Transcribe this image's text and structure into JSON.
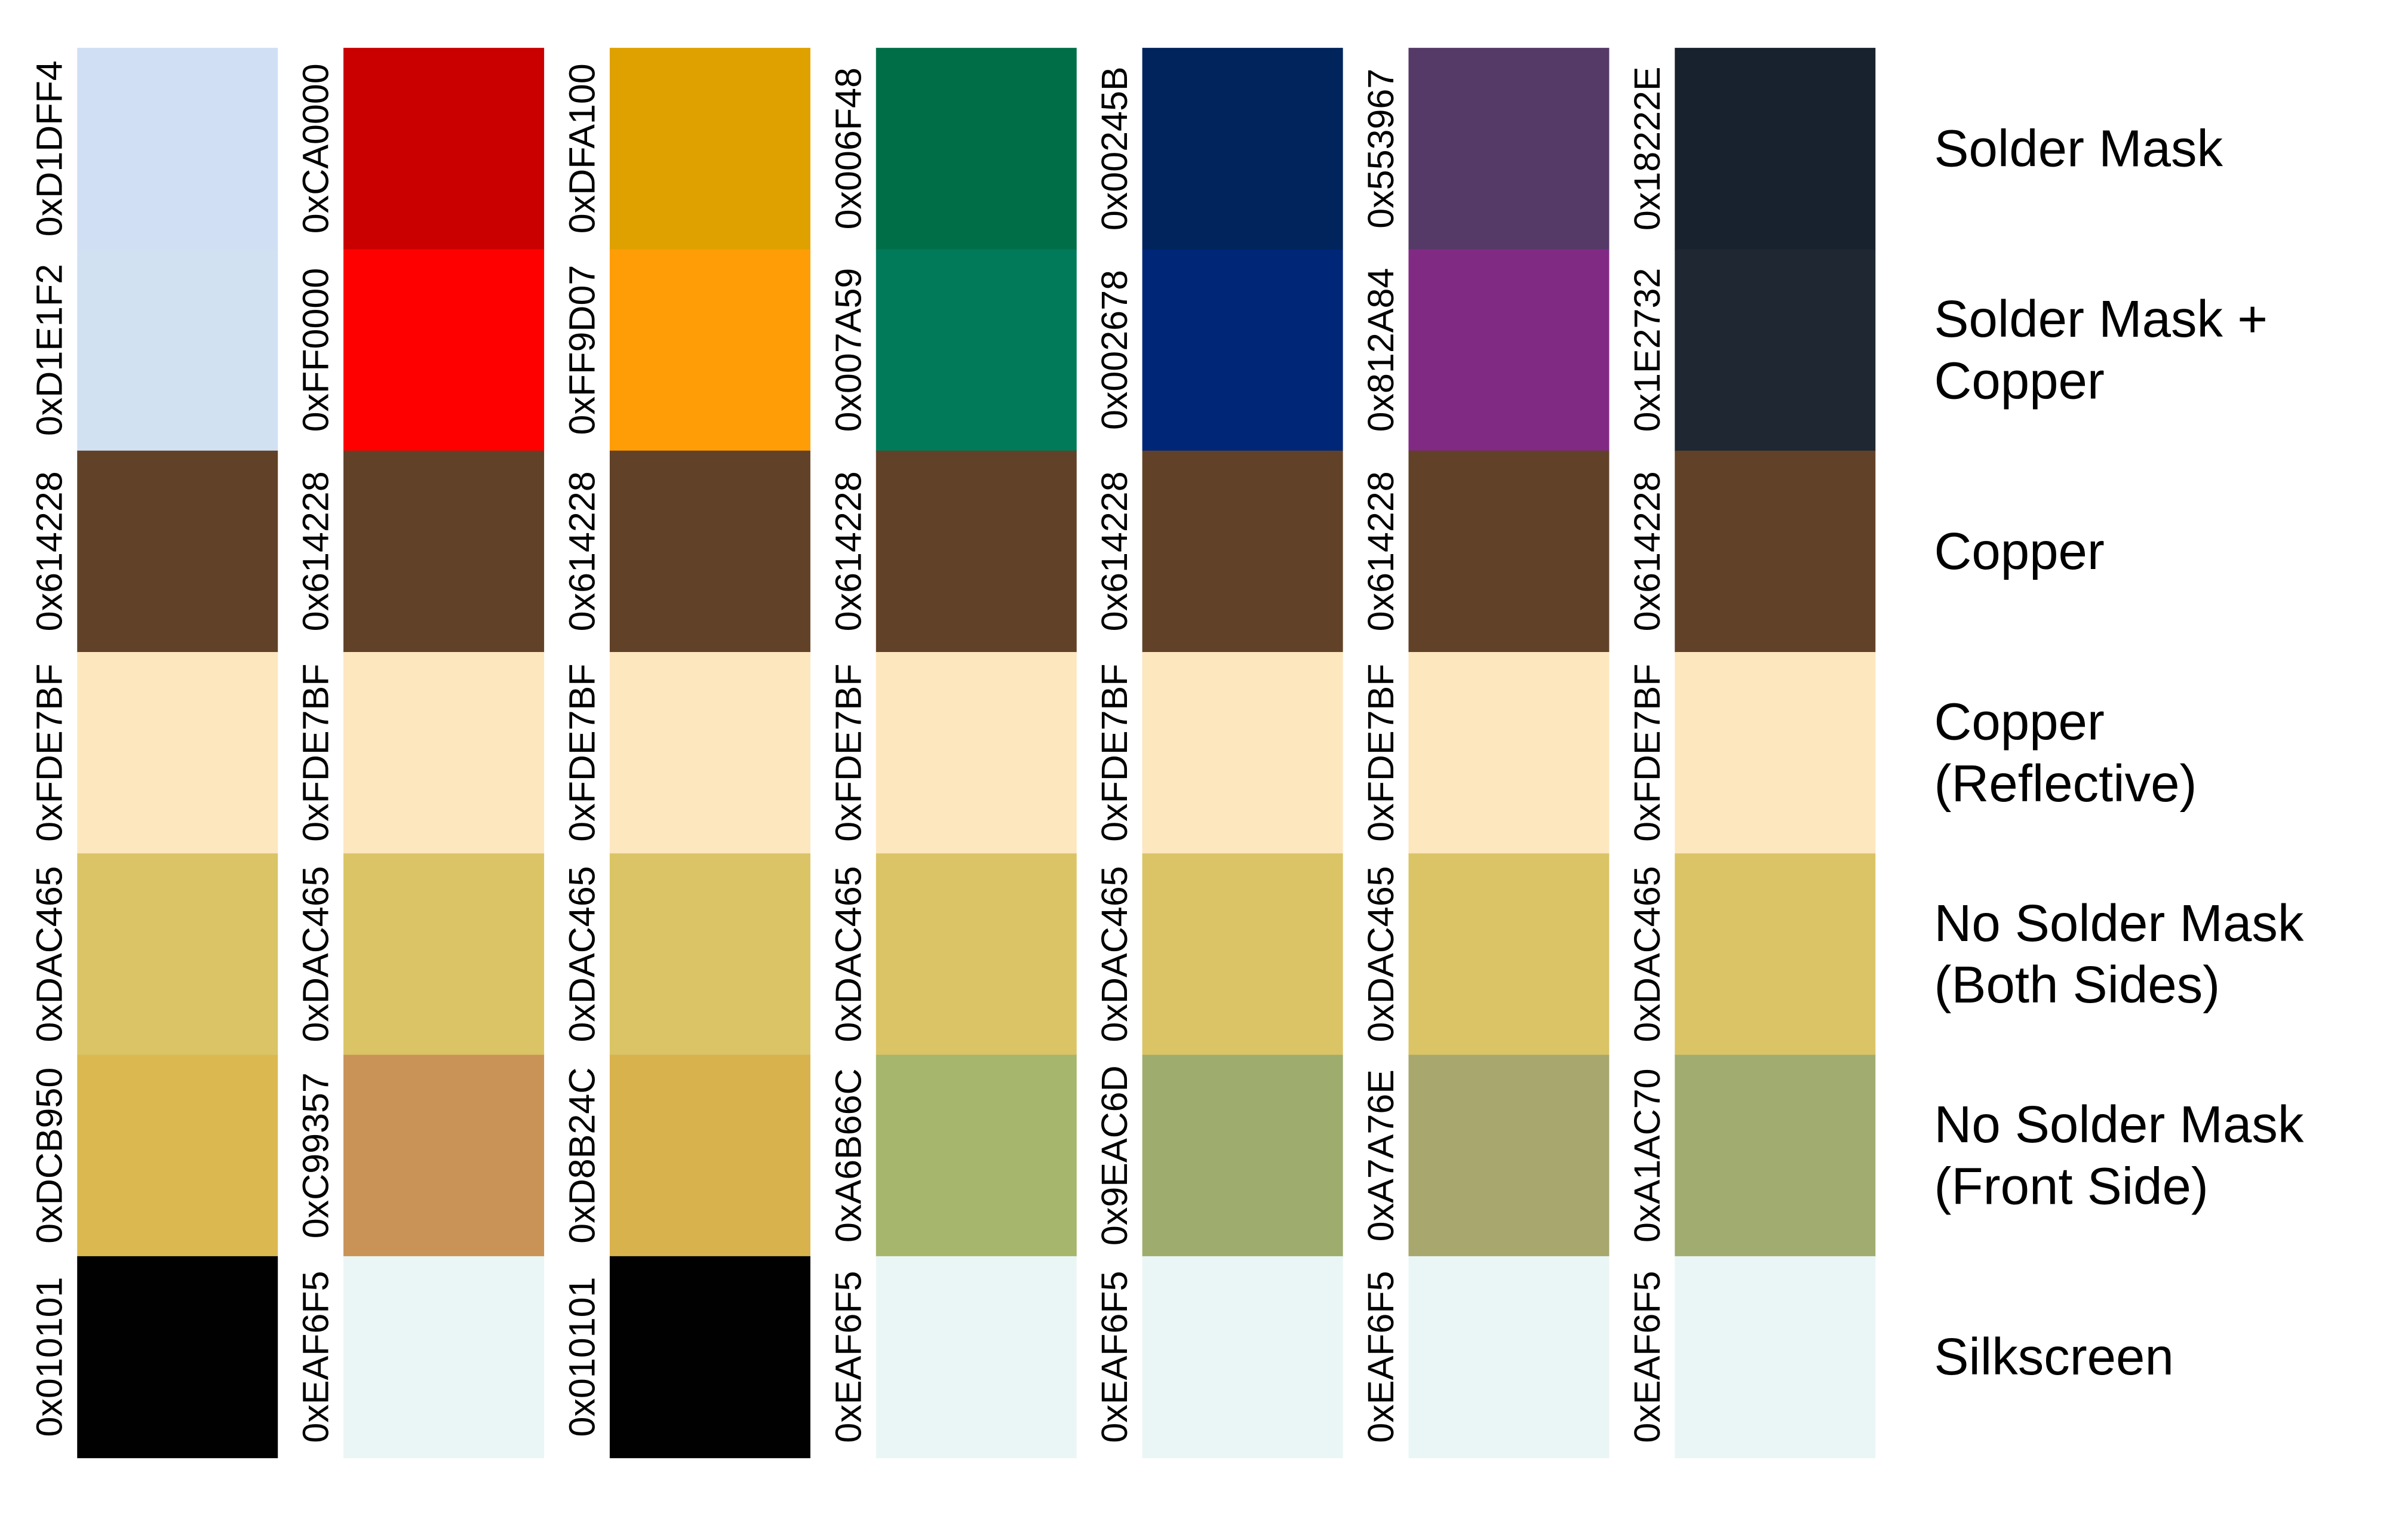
{
  "rows": [
    {
      "label_lines": [
        "Solder Mask"
      ]
    },
    {
      "label_lines": [
        "Solder Mask +",
        "Copper"
      ]
    },
    {
      "label_lines": [
        "Copper"
      ]
    },
    {
      "label_lines": [
        "Copper",
        "(Reflective)"
      ]
    },
    {
      "label_lines": [
        "No Solder Mask",
        "(Both Sides)"
      ]
    },
    {
      "label_lines": [
        "No Solder Mask",
        "(Front Side)"
      ]
    },
    {
      "label_lines": [
        "Silkscreen"
      ]
    }
  ],
  "columns": [
    {
      "swatches": [
        "0xD1DFF4",
        "0xD1E1F2",
        "0x614228",
        "0xFDE7BF",
        "0xDAC465",
        "0xDCB950",
        "0x010101"
      ]
    },
    {
      "swatches": [
        "0xCA0000",
        "0xFF0000",
        "0x614228",
        "0xFDE7BF",
        "0xDAC465",
        "0xC99357",
        "0xEAF6F5"
      ]
    },
    {
      "swatches": [
        "0xDFA100",
        "0xFF9D07",
        "0x614228",
        "0xFDE7BF",
        "0xDAC465",
        "0xD8B24C",
        "0x010101"
      ]
    },
    {
      "swatches": [
        "0x006F48",
        "0x007A59",
        "0x614228",
        "0xFDE7BF",
        "0xDAC465",
        "0xA6B66C",
        "0xEAF6F5"
      ]
    },
    {
      "swatches": [
        "0x00245B",
        "0x002678",
        "0x614228",
        "0xFDE7BF",
        "0xDAC465",
        "0x9EAC6D",
        "0xEAF6F5"
      ]
    },
    {
      "swatches": [
        "0x553967",
        "0x812A84",
        "0x614228",
        "0xFDE7BF",
        "0xDAC465",
        "0xA7A76E",
        "0xEAF6F5"
      ]
    },
    {
      "swatches": [
        "0x18222E",
        "0x1E2732",
        "0x614228",
        "0xFDE7BF",
        "0xDAC465",
        "0xA1AC70",
        "0xEAF6F5"
      ]
    }
  ]
}
